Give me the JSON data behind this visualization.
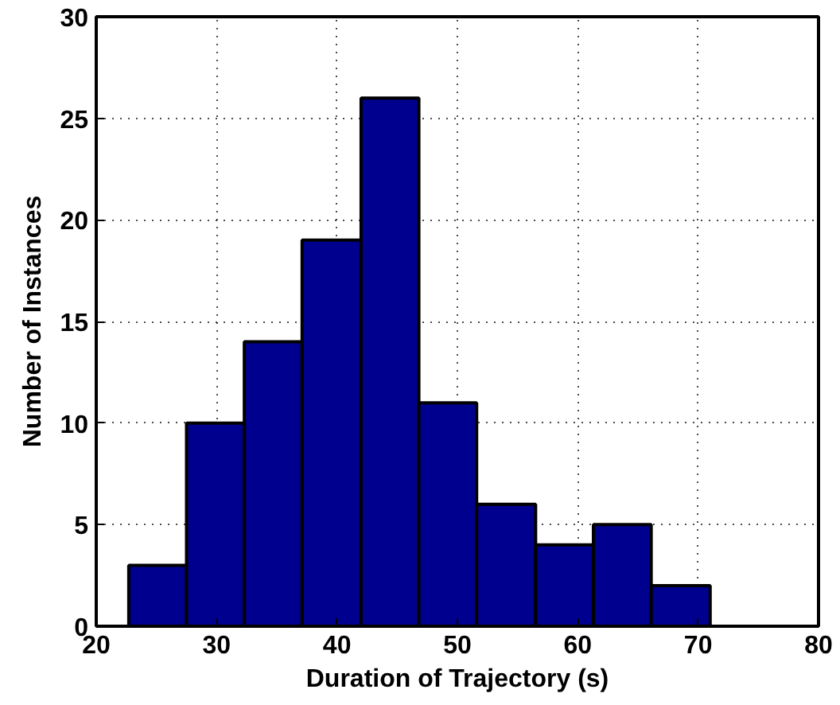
{
  "chart_data": {
    "type": "histogram",
    "xlabel": "Duration of Trajectory (s)",
    "ylabel": "Number of Instances",
    "bins": [
      22.7,
      27.5,
      32.3,
      37.1,
      42.0,
      46.8,
      51.6,
      56.5,
      61.3,
      66.1,
      71.0
    ],
    "values": [
      3,
      10,
      14,
      19,
      26,
      11,
      6,
      4,
      5,
      2
    ],
    "color": "#00008f",
    "xlim": [
      20,
      80
    ],
    "xticks": [
      20,
      30,
      40,
      50,
      60,
      70,
      80
    ],
    "ylim": [
      0,
      30
    ],
    "yticks": [
      0,
      5,
      10,
      15,
      20,
      25,
      30
    ],
    "grid": true
  }
}
